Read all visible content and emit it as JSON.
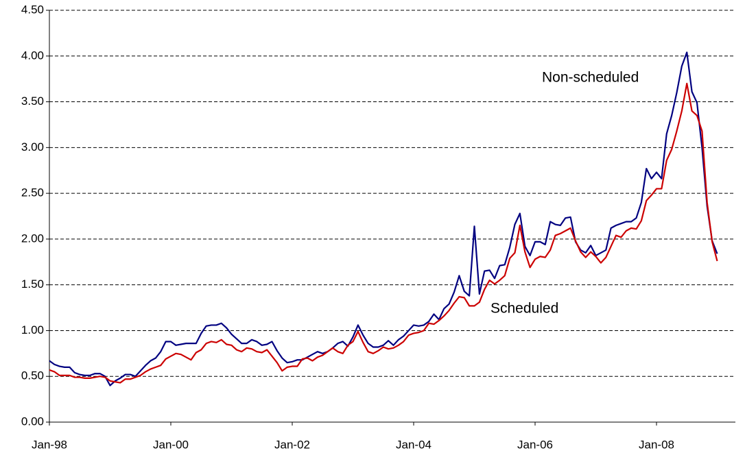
{
  "chart_data": {
    "type": "line",
    "categories": [
      "Jan-98",
      null,
      null,
      null,
      null,
      null,
      null,
      null,
      null,
      null,
      null,
      null,
      null,
      null,
      null,
      null,
      null,
      null,
      null,
      null,
      null,
      null,
      null,
      null,
      "Jan-00",
      null,
      null,
      null,
      null,
      null,
      null,
      null,
      null,
      null,
      null,
      null,
      null,
      null,
      null,
      null,
      null,
      null,
      null,
      null,
      null,
      null,
      null,
      null,
      "Jan-02",
      null,
      null,
      null,
      null,
      null,
      null,
      null,
      null,
      null,
      null,
      null,
      null,
      null,
      null,
      null,
      null,
      null,
      null,
      null,
      null,
      null,
      null,
      null,
      "Jan-04",
      null,
      null,
      null,
      null,
      null,
      null,
      null,
      null,
      null,
      null,
      null,
      null,
      null,
      null,
      null,
      null,
      null,
      null,
      null,
      null,
      null,
      null,
      null,
      "Jan-06",
      null,
      null,
      null,
      null,
      null,
      null,
      null,
      null,
      null,
      null,
      null,
      null,
      null,
      null,
      null,
      null,
      null,
      null,
      null,
      null,
      null,
      null,
      null,
      "Jan-08",
      null,
      null,
      null,
      null,
      null,
      null,
      null,
      null,
      null,
      null,
      null,
      null
    ],
    "series": [
      {
        "name": "Non-scheduled",
        "color": "#000080",
        "values": [
          0.67,
          0.63,
          0.61,
          0.6,
          0.6,
          0.54,
          0.52,
          0.51,
          0.51,
          0.53,
          0.53,
          0.5,
          0.4,
          0.45,
          0.48,
          0.52,
          0.52,
          0.5,
          0.56,
          0.62,
          0.67,
          0.7,
          0.77,
          0.88,
          0.88,
          0.84,
          0.85,
          0.86,
          0.86,
          0.86,
          0.97,
          1.05,
          1.06,
          1.06,
          1.08,
          1.03,
          0.96,
          0.91,
          0.86,
          0.86,
          0.9,
          0.88,
          0.84,
          0.85,
          0.88,
          0.78,
          0.7,
          0.65,
          0.66,
          0.68,
          0.68,
          0.71,
          0.74,
          0.77,
          0.75,
          0.77,
          0.81,
          0.86,
          0.88,
          0.83,
          0.93,
          1.06,
          0.95,
          0.86,
          0.82,
          0.82,
          0.84,
          0.89,
          0.84,
          0.9,
          0.94,
          1.0,
          1.06,
          1.05,
          1.06,
          1.1,
          1.18,
          1.12,
          1.24,
          1.29,
          1.42,
          1.6,
          1.43,
          1.38,
          2.14,
          1.4,
          1.65,
          1.66,
          1.57,
          1.71,
          1.72,
          1.91,
          2.16,
          2.28,
          1.92,
          1.82,
          1.97,
          1.97,
          1.94,
          2.19,
          2.16,
          2.15,
          2.23,
          2.24,
          1.97,
          1.88,
          1.85,
          1.93,
          1.82,
          1.85,
          1.88,
          2.12,
          2.15,
          2.17,
          2.19,
          2.19,
          2.23,
          2.4,
          2.77,
          2.66,
          2.73,
          2.66,
          3.15,
          3.35,
          3.6,
          3.89,
          4.04,
          3.61,
          3.49,
          3.0,
          2.36,
          1.98,
          1.84
        ]
      },
      {
        "name": "Scheduled",
        "color": "#cc0000",
        "values": [
          0.57,
          0.55,
          0.51,
          0.51,
          0.51,
          0.49,
          0.49,
          0.48,
          0.48,
          0.49,
          0.5,
          0.49,
          0.45,
          0.44,
          0.43,
          0.47,
          0.47,
          0.49,
          0.51,
          0.55,
          0.58,
          0.6,
          0.62,
          0.69,
          0.72,
          0.75,
          0.74,
          0.71,
          0.68,
          0.76,
          0.79,
          0.86,
          0.88,
          0.87,
          0.9,
          0.85,
          0.84,
          0.79,
          0.77,
          0.81,
          0.8,
          0.77,
          0.76,
          0.79,
          0.72,
          0.65,
          0.56,
          0.6,
          0.61,
          0.61,
          0.69,
          0.7,
          0.67,
          0.71,
          0.73,
          0.77,
          0.81,
          0.77,
          0.75,
          0.84,
          0.88,
          0.99,
          0.87,
          0.77,
          0.75,
          0.78,
          0.82,
          0.8,
          0.81,
          0.84,
          0.88,
          0.95,
          0.97,
          0.98,
          1.0,
          1.08,
          1.07,
          1.11,
          1.16,
          1.22,
          1.3,
          1.37,
          1.36,
          1.27,
          1.27,
          1.31,
          1.45,
          1.55,
          1.51,
          1.55,
          1.6,
          1.79,
          1.85,
          2.15,
          1.86,
          1.69,
          1.78,
          1.81,
          1.8,
          1.88,
          2.04,
          2.06,
          2.09,
          2.12,
          1.98,
          1.86,
          1.8,
          1.86,
          1.81,
          1.74,
          1.8,
          1.92,
          2.04,
          2.02,
          2.09,
          2.12,
          2.11,
          2.2,
          2.42,
          2.48,
          2.55,
          2.55,
          2.86,
          2.98,
          3.18,
          3.4,
          3.7,
          3.4,
          3.35,
          3.18,
          2.4,
          1.97,
          1.76
        ]
      }
    ],
    "ylim": [
      0,
      4.5
    ],
    "yticks": [
      {
        "value": 0,
        "label": "0.00"
      },
      {
        "value": 0.5,
        "label": "0.50"
      },
      {
        "value": 1,
        "label": "1.00"
      },
      {
        "value": 1.5,
        "label": "1.50"
      },
      {
        "value": 2,
        "label": "2.00"
      },
      {
        "value": 2.5,
        "label": "2.50"
      },
      {
        "value": 3,
        "label": "3.00"
      },
      {
        "value": 3.5,
        "label": "3.50"
      },
      {
        "value": 4,
        "label": "4.00"
      },
      {
        "value": 4.5,
        "label": "4.50"
      }
    ],
    "grid": true
  }
}
